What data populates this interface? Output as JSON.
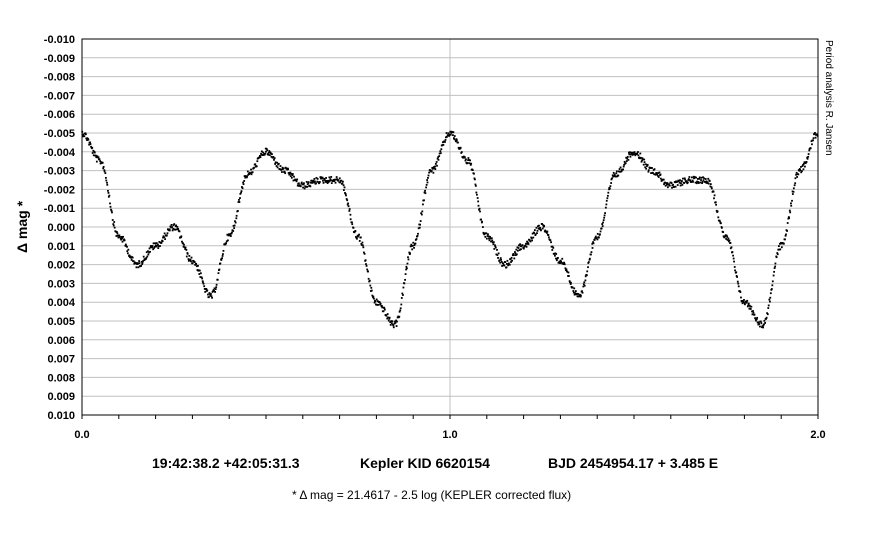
{
  "chart_data": {
    "type": "scatter",
    "ylabel": "Δ mag *",
    "y_inverted": true,
    "ylim": [
      0.01,
      -0.01
    ],
    "xlim": [
      0.0,
      2.0
    ],
    "y_tick_labels": [
      "-0.010",
      "-0.009",
      "-0.008",
      "-0.007",
      "-0.006",
      "-0.005",
      "-0.004",
      "-0.003",
      "-0.002",
      "-0.001",
      "0.000",
      "0.001",
      "0.002",
      "0.003",
      "0.004",
      "0.005",
      "0.006",
      "0.007",
      "0.008",
      "0.009",
      "0.010"
    ],
    "x_tick_labels": [
      "0.0",
      "1.0",
      "2.0"
    ],
    "x_minor_step": 0.1,
    "vertical_gridline_at": 1.0,
    "horizontal_grid": true,
    "side_note": "Period analysis  R. Jansen",
    "marker_color": "#000000",
    "phase_curve_one_cycle": {
      "phase": [
        0.0,
        0.05,
        0.1,
        0.15,
        0.2,
        0.25,
        0.3,
        0.35,
        0.4,
        0.45,
        0.5,
        0.55,
        0.6,
        0.65,
        0.7,
        0.75,
        0.8,
        0.85,
        0.9,
        0.95,
        1.0
      ],
      "delta_mag": [
        -0.005,
        -0.0035,
        0.0005,
        0.002,
        0.001,
        0.0,
        0.0018,
        0.0037,
        0.0005,
        -0.0028,
        -0.004,
        -0.003,
        -0.0022,
        -0.0025,
        -0.0025,
        0.0005,
        0.004,
        0.0052,
        0.001,
        -0.003,
        -0.005
      ]
    }
  },
  "caption": {
    "coords": "19:42:38.2 +42:05:31.3",
    "kid": "Kepler KID 6620154",
    "ephemeris": "BJD 2454954.17 + 3.485 E"
  },
  "footnote": "* Δ mag = 21.4617 - 2.5 log (KEPLER corrected flux)"
}
